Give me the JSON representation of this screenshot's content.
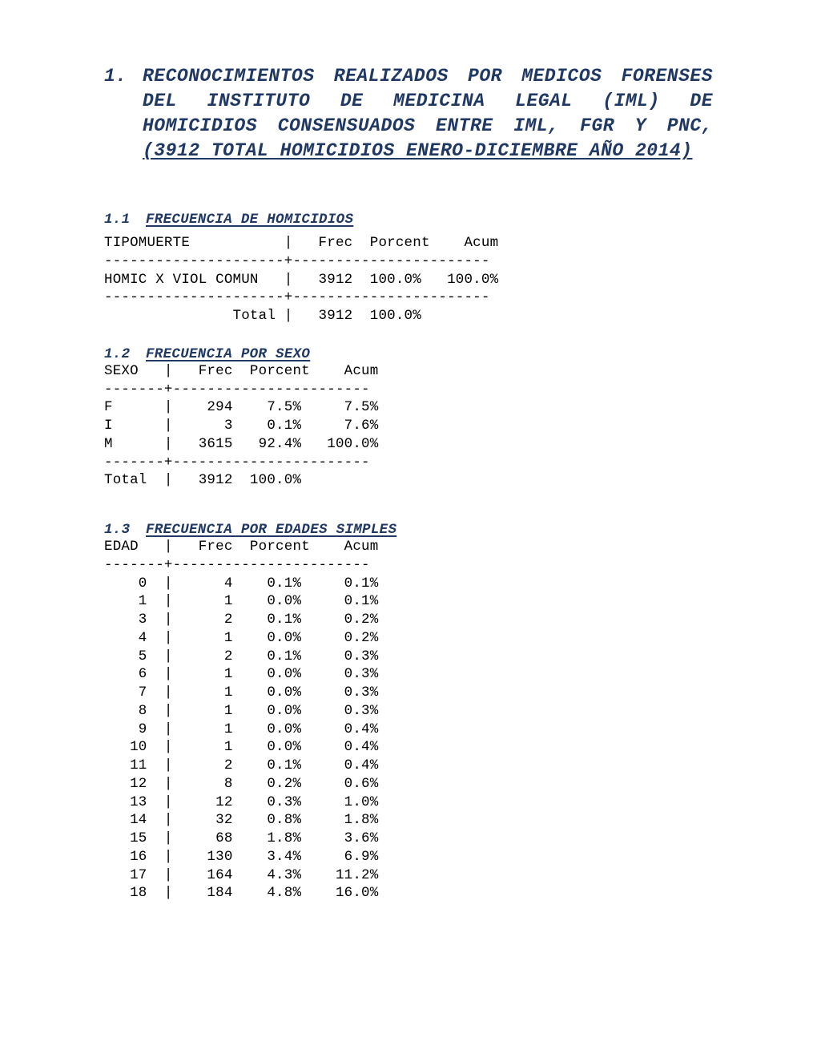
{
  "title": {
    "number": "1.",
    "main": "RECONOCIMIENTOS REALIZADOS POR MEDICOS FORENSES DEL INSTITUTO DE MEDICINA LEGAL (IML) DE HOMICIDIOS CONSENSUADOS ENTRE IML, FGR Y PNC, ",
    "underlined": "(3912 TOTAL HOMICIDIOS ENERO-DICIEMBRE AÑO 2014)"
  },
  "colors": {
    "title": "#1f3864",
    "text": "#000000",
    "background": "#ffffff"
  },
  "section1": {
    "number": "1.1",
    "title": "FRECUENCIA DE HOMICIDIOS",
    "header": "TIPOMUERTE           |   Frec  Porcent    Acum",
    "divider": "---------------------+-----------------------",
    "row": "HOMIC X VIOL COMUN   |   3912  100.0%   100.0%",
    "total": "               Total |   3912  100.0%"
  },
  "section2": {
    "number": "1.2",
    "title": "FRECUENCIA POR SEXO",
    "header": "SEXO   |   Frec  Porcent    Acum",
    "divider": "-------+-----------------------",
    "rows": [
      "F      |    294    7.5%     7.5%",
      "I      |      3    0.1%     7.6%",
      "M      |   3615   92.4%   100.0%"
    ],
    "total": "Total  |   3912  100.0%"
  },
  "section3": {
    "number": "1.3",
    "title": "FRECUENCIA POR EDADES SIMPLES",
    "header": "EDAD   |   Frec  Porcent    Acum",
    "divider": "-------+-----------------------",
    "rows": [
      "    0  |      4    0.1%     0.1%",
      "    1  |      1    0.0%     0.1%",
      "    3  |      2    0.1%     0.2%",
      "    4  |      1    0.0%     0.2%",
      "    5  |      2    0.1%     0.3%",
      "    6  |      1    0.0%     0.3%",
      "    7  |      1    0.0%     0.3%",
      "    8  |      1    0.0%     0.3%",
      "    9  |      1    0.0%     0.4%",
      "   10  |      1    0.0%     0.4%",
      "   11  |      2    0.1%     0.4%",
      "   12  |      8    0.2%     0.6%",
      "   13  |     12    0.3%     1.0%",
      "   14  |     32    0.8%     1.8%",
      "   15  |     68    1.8%     3.6%",
      "   16  |    130    3.4%     6.9%",
      "   17  |    164    4.3%    11.2%",
      "   18  |    184    4.8%    16.0%"
    ]
  }
}
